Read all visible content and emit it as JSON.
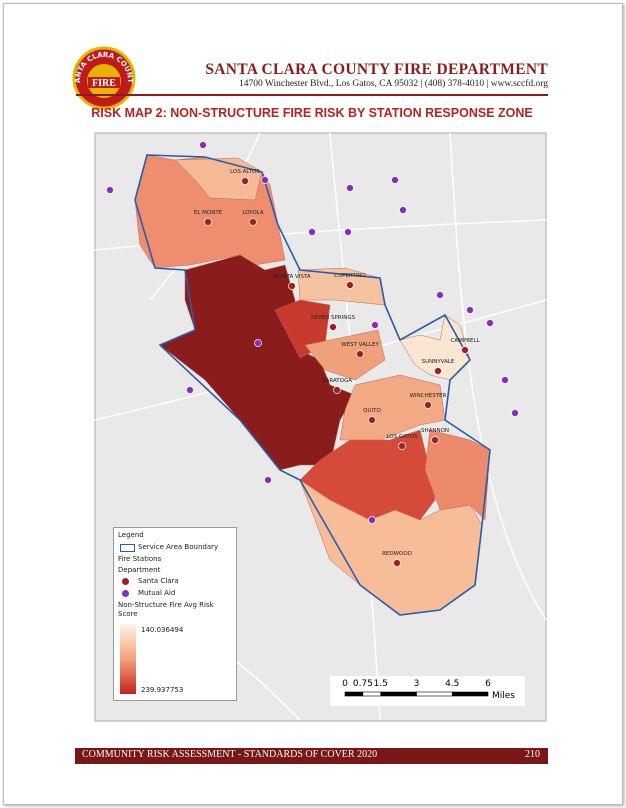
{
  "header": {
    "logo_arc": "SANTA CLARA COUNTY",
    "logo_word": "FIRE",
    "department": "SANTA CLARA COUNTY FIRE DEPARTMENT",
    "address": "14700 Winchester Blvd., Los Gatos, CA 95032 | (408) 378-4010 | www.sccfd.org"
  },
  "title": "RISK MAP 2: NON-STRUCTURE FIRE RISK BY STATION RESPONSE ZONE",
  "map": {
    "stations": [
      "LOS ALTOS",
      "EL MONTE",
      "LOYOLA",
      "MONTA VISTA",
      "CUPERTINO",
      "SEVEN SPRINGS",
      "WEST VALLEY",
      "CAMPBELL",
      "SUNNYVALE",
      "SARATOGA",
      "WINCHESTER",
      "QUITO",
      "SHANNON",
      "LOS GATOS",
      "REDWOOD"
    ],
    "legend": {
      "title": "Legend",
      "boundary": "Service Area Boundary",
      "stations": "Fire Stations",
      "department": "Department",
      "santa_clara": "Santa Clara",
      "mutual_aid": "Mutual Aid",
      "score_title": "Non-Structure Fire Avg Risk Score",
      "score_min": "140.036494",
      "score_max": "239.937753"
    },
    "scale": {
      "ticks": [
        0,
        0.75,
        1.5,
        3,
        4.5,
        6
      ],
      "unit": "Miles"
    }
  },
  "footer": {
    "text": "COMMUNITY RISK ASSESSMENT - STANDARDS OF COVER 2020",
    "page": "210"
  }
}
